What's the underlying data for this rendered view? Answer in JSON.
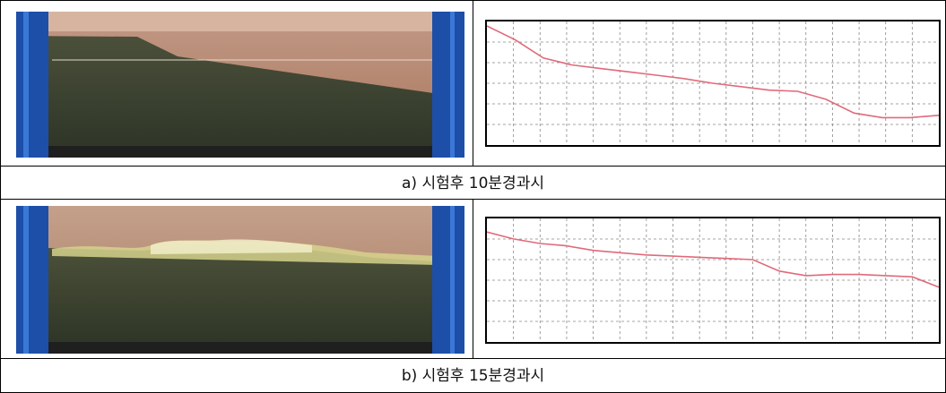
{
  "panels": [
    {
      "caption": "a) 시험후 10분경과시",
      "profile": [
        1.0,
        0.88,
        0.72,
        0.66,
        0.63,
        0.6,
        0.57,
        0.54,
        0.5,
        0.47,
        0.44,
        0.43,
        0.36,
        0.24,
        0.2,
        0.2,
        0.22
      ]
    },
    {
      "caption": "b) 시험후 15분경과시",
      "profile": [
        0.92,
        0.86,
        0.82,
        0.8,
        0.76,
        0.74,
        0.72,
        0.71,
        0.7,
        0.69,
        0.68,
        0.58,
        0.54,
        0.55,
        0.55,
        0.54,
        0.53,
        0.44
      ]
    }
  ],
  "colors": {
    "profile_line": "#e06a7a",
    "grid": "#888888",
    "frame_blue": "#1d4fa8",
    "sediment": "#3d4432",
    "water": "#b58770"
  }
}
